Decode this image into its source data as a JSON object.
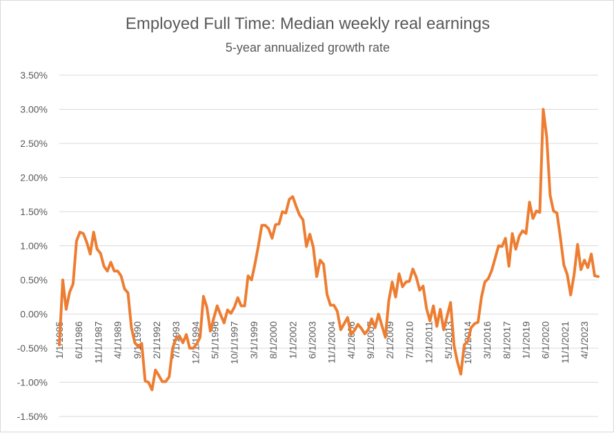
{
  "chart_data": {
    "type": "line",
    "title": "Employed Full Time: Median weekly real earnings",
    "subtitle": "5-year annualized growth rate",
    "xlabel": "",
    "ylabel": "",
    "ylim": [
      -1.5,
      3.5
    ],
    "grid": true,
    "line_color": "#ED7D31",
    "y_tick_labels": [
      "3.50%",
      "3.00%",
      "2.50%",
      "2.00%",
      "1.50%",
      "1.00%",
      "0.50%",
      "0.00%",
      "-0.50%",
      "-1.00%",
      "-1.50%"
    ],
    "y_tick_values": [
      3.5,
      3.0,
      2.5,
      2.0,
      1.5,
      1.0,
      0.5,
      0.0,
      -0.5,
      -1.0,
      -1.5
    ],
    "x_tick_labels": [
      "1/1/1985",
      "6/1/1986",
      "11/1/1987",
      "4/1/1989",
      "9/1/1990",
      "2/1/1992",
      "7/1/1993",
      "12/1/1994",
      "5/1/1996",
      "10/1/1997",
      "3/1/1999",
      "8/1/2000",
      "1/1/2002",
      "6/1/2003",
      "11/1/2004",
      "4/1/2006",
      "9/1/2007",
      "2/1/2009",
      "7/1/2010",
      "12/1/2011",
      "5/1/2013",
      "10/1/2014",
      "3/1/2016",
      "8/1/2017",
      "1/1/2019",
      "6/1/2020",
      "11/1/2021",
      "4/1/2023"
    ],
    "series": [
      {
        "x": [
          "1985.00",
          "1985.25",
          "1985.50",
          "1985.75",
          "1986.00",
          "1986.25",
          "1986.50",
          "1986.75",
          "1987.00",
          "1987.25",
          "1987.50",
          "1987.75",
          "1988.00",
          "1988.25",
          "1988.50",
          "1988.75",
          "1989.00",
          "1989.25",
          "1989.50",
          "1989.75",
          "1990.00",
          "1990.25",
          "1990.50",
          "1990.75",
          "1991.00",
          "1991.25",
          "1991.50",
          "1991.75",
          "1992.00",
          "1992.25",
          "1992.50",
          "1992.75",
          "1993.00",
          "1993.25",
          "1993.50",
          "1993.75",
          "1994.00",
          "1994.25",
          "1994.50",
          "1994.75",
          "1995.00",
          "1995.25",
          "1995.50",
          "1995.75",
          "1996.00",
          "1996.25",
          "1996.50",
          "1996.75",
          "1997.00",
          "1997.25",
          "1997.50",
          "1997.75",
          "1998.00",
          "1998.25",
          "1998.50",
          "1998.75",
          "1999.00",
          "1999.25",
          "1999.50",
          "1999.75",
          "2000.00",
          "2000.25",
          "2000.50",
          "2000.75",
          "2001.00",
          "2001.25",
          "2001.50",
          "2001.75",
          "2002.00",
          "2002.25",
          "2002.50",
          "2002.75",
          "2003.00",
          "2003.25",
          "2003.50",
          "2003.75",
          "2004.00",
          "2004.25",
          "2004.50",
          "2004.75",
          "2005.00",
          "2005.25",
          "2005.50",
          "2005.75",
          "2006.00",
          "2006.25",
          "2006.50",
          "2006.75",
          "2007.00",
          "2007.25",
          "2007.50",
          "2007.75",
          "2008.00",
          "2008.25",
          "2008.50",
          "2008.75",
          "2009.00",
          "2009.25",
          "2009.50",
          "2009.75",
          "2010.00",
          "2010.25",
          "2010.50",
          "2010.75",
          "2011.00",
          "2011.25",
          "2011.50",
          "2011.75",
          "2012.00",
          "2012.25",
          "2012.50",
          "2012.75",
          "2013.00",
          "2013.25",
          "2013.50",
          "2013.75",
          "2014.00",
          "2014.25",
          "2014.50",
          "2014.75",
          "2015.00",
          "2015.25",
          "2015.50",
          "2015.75",
          "2016.00",
          "2016.25",
          "2016.50",
          "2016.75",
          "2017.00",
          "2017.25",
          "2017.50",
          "2017.75",
          "2018.00",
          "2018.25",
          "2018.50",
          "2018.75",
          "2019.00",
          "2019.25",
          "2019.50",
          "2019.75",
          "2020.00",
          "2020.25",
          "2020.50",
          "2020.75",
          "2021.00",
          "2021.25",
          "2021.50",
          "2021.75",
          "2022.00",
          "2022.25",
          "2022.50",
          "2022.75",
          "2023.00",
          "2023.25",
          "2023.50",
          "2023.75",
          "2024.00",
          "2024.25"
        ],
        "values": [
          -0.45,
          0.5,
          0.07,
          0.32,
          0.44,
          1.07,
          1.2,
          1.18,
          1.05,
          0.88,
          1.2,
          0.95,
          0.89,
          0.7,
          0.63,
          0.76,
          0.63,
          0.63,
          0.56,
          0.37,
          0.31,
          -0.2,
          -0.42,
          -0.48,
          -0.43,
          -0.98,
          -1.0,
          -1.11,
          -0.82,
          -0.9,
          -0.99,
          -0.99,
          -0.92,
          -0.5,
          -0.36,
          -0.32,
          -0.42,
          -0.3,
          -0.5,
          -0.5,
          -0.44,
          -0.34,
          0.26,
          0.1,
          -0.25,
          -0.06,
          0.12,
          -0.01,
          -0.13,
          0.06,
          0.01,
          0.1,
          0.24,
          0.12,
          0.12,
          0.56,
          0.5,
          0.73,
          1.0,
          1.3,
          1.3,
          1.25,
          1.11,
          1.31,
          1.32,
          1.5,
          1.48,
          1.68,
          1.72,
          1.58,
          1.45,
          1.38,
          0.99,
          1.17,
          0.98,
          0.55,
          0.79,
          0.73,
          0.29,
          0.13,
          0.13,
          0.04,
          -0.23,
          -0.14,
          -0.05,
          -0.3,
          -0.24,
          -0.15,
          -0.21,
          -0.29,
          -0.23,
          -0.07,
          -0.2,
          0.0,
          -0.17,
          -0.34,
          0.2,
          0.47,
          0.25,
          0.59,
          0.4,
          0.47,
          0.48,
          0.66,
          0.54,
          0.35,
          0.41,
          0.08,
          -0.1,
          0.12,
          -0.18,
          0.07,
          -0.23,
          -0.03,
          0.17,
          -0.46,
          -0.7,
          -0.88,
          -0.45,
          -0.4,
          -0.2,
          -0.14,
          -0.12,
          0.25,
          0.47,
          0.52,
          0.64,
          0.82,
          1.0,
          0.99,
          1.11,
          0.7,
          1.18,
          0.95,
          1.14,
          1.22,
          1.18,
          1.64,
          1.4,
          1.51,
          1.49,
          3.0,
          2.6,
          1.74,
          1.51,
          1.48,
          1.12,
          0.72,
          0.58,
          0.28,
          0.58,
          1.02,
          0.65,
          0.79,
          0.68,
          0.88,
          0.56,
          0.55
        ]
      }
    ]
  }
}
